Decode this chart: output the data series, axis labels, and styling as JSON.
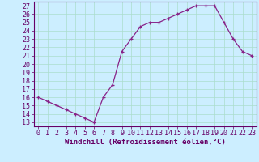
{
  "x": [
    0,
    1,
    2,
    3,
    4,
    5,
    6,
    7,
    8,
    9,
    10,
    11,
    12,
    13,
    14,
    15,
    16,
    17,
    18,
    19,
    20,
    21,
    22,
    23
  ],
  "y": [
    16.0,
    15.5,
    15.0,
    14.5,
    14.0,
    13.5,
    13.0,
    16.0,
    17.5,
    21.5,
    23.0,
    24.5,
    25.0,
    25.0,
    25.5,
    26.0,
    26.5,
    27.0,
    27.0,
    27.0,
    25.0,
    23.0,
    21.5,
    21.0
  ],
  "line_color": "#882288",
  "marker_color": "#882288",
  "bg_color": "#cceeff",
  "grid_color": "#aaddcc",
  "xlabel": "Windchill (Refroidissement éolien,°C)",
  "ylabel_ticks": [
    13,
    14,
    15,
    16,
    17,
    18,
    19,
    20,
    21,
    22,
    23,
    24,
    25,
    26,
    27
  ],
  "xlim": [
    -0.5,
    23.5
  ],
  "ylim": [
    12.5,
    27.5
  ],
  "xlabel_fontsize": 6.5,
  "tick_fontsize": 6.0,
  "spine_color": "#660066"
}
